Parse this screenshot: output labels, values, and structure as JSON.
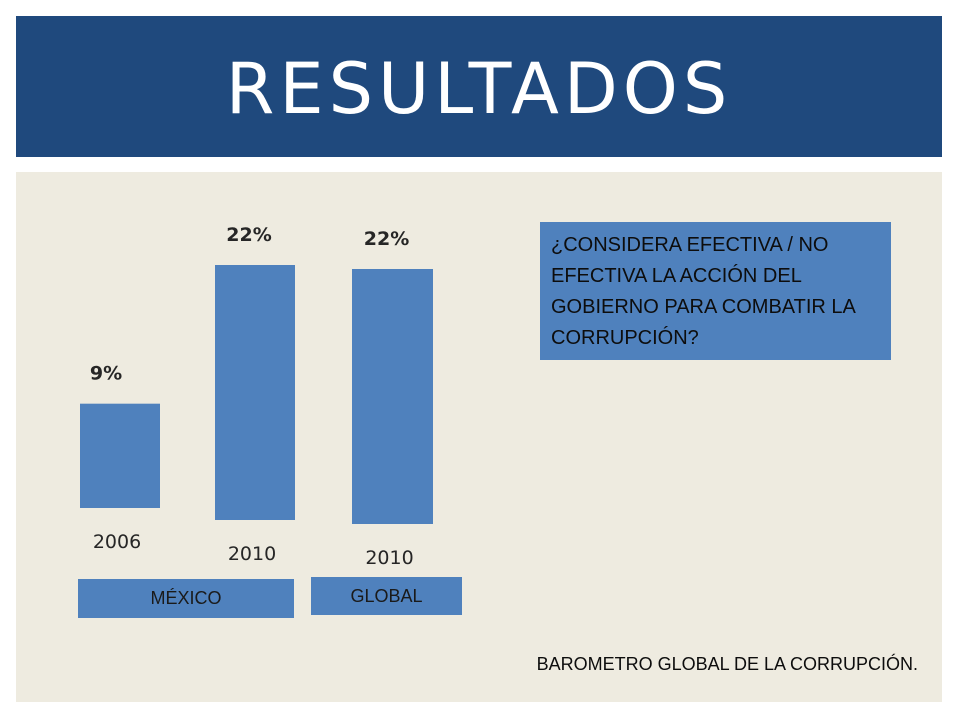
{
  "slide": {
    "title": "RESULTADOS",
    "question": "¿CONSIDERA EFECTIVA / NO EFECTIVA LA ACCIÓN DEL GOBIERNO PARA COMBATIR LA CORRUPCIÓN?",
    "source": "BAROMETRO GLOBAL DE LA CORRUPCIÓN.",
    "groups": [
      "MÉXICO",
      "GLOBAL"
    ]
  },
  "colors": {
    "title_bar": "#1f497d",
    "bar": "#4f81bd",
    "panel": "#eeebe0"
  },
  "chart_data": {
    "type": "bar",
    "categories": [
      "2006",
      "2010",
      "2010"
    ],
    "values": [
      9,
      22,
      22
    ],
    "value_labels": [
      "9%",
      "22%",
      "22%"
    ],
    "groups": [
      "MÉXICO",
      "MÉXICO",
      "GLOBAL"
    ],
    "unit": "%",
    "ylim": [
      0,
      25
    ],
    "grid": false,
    "legend": "none"
  }
}
